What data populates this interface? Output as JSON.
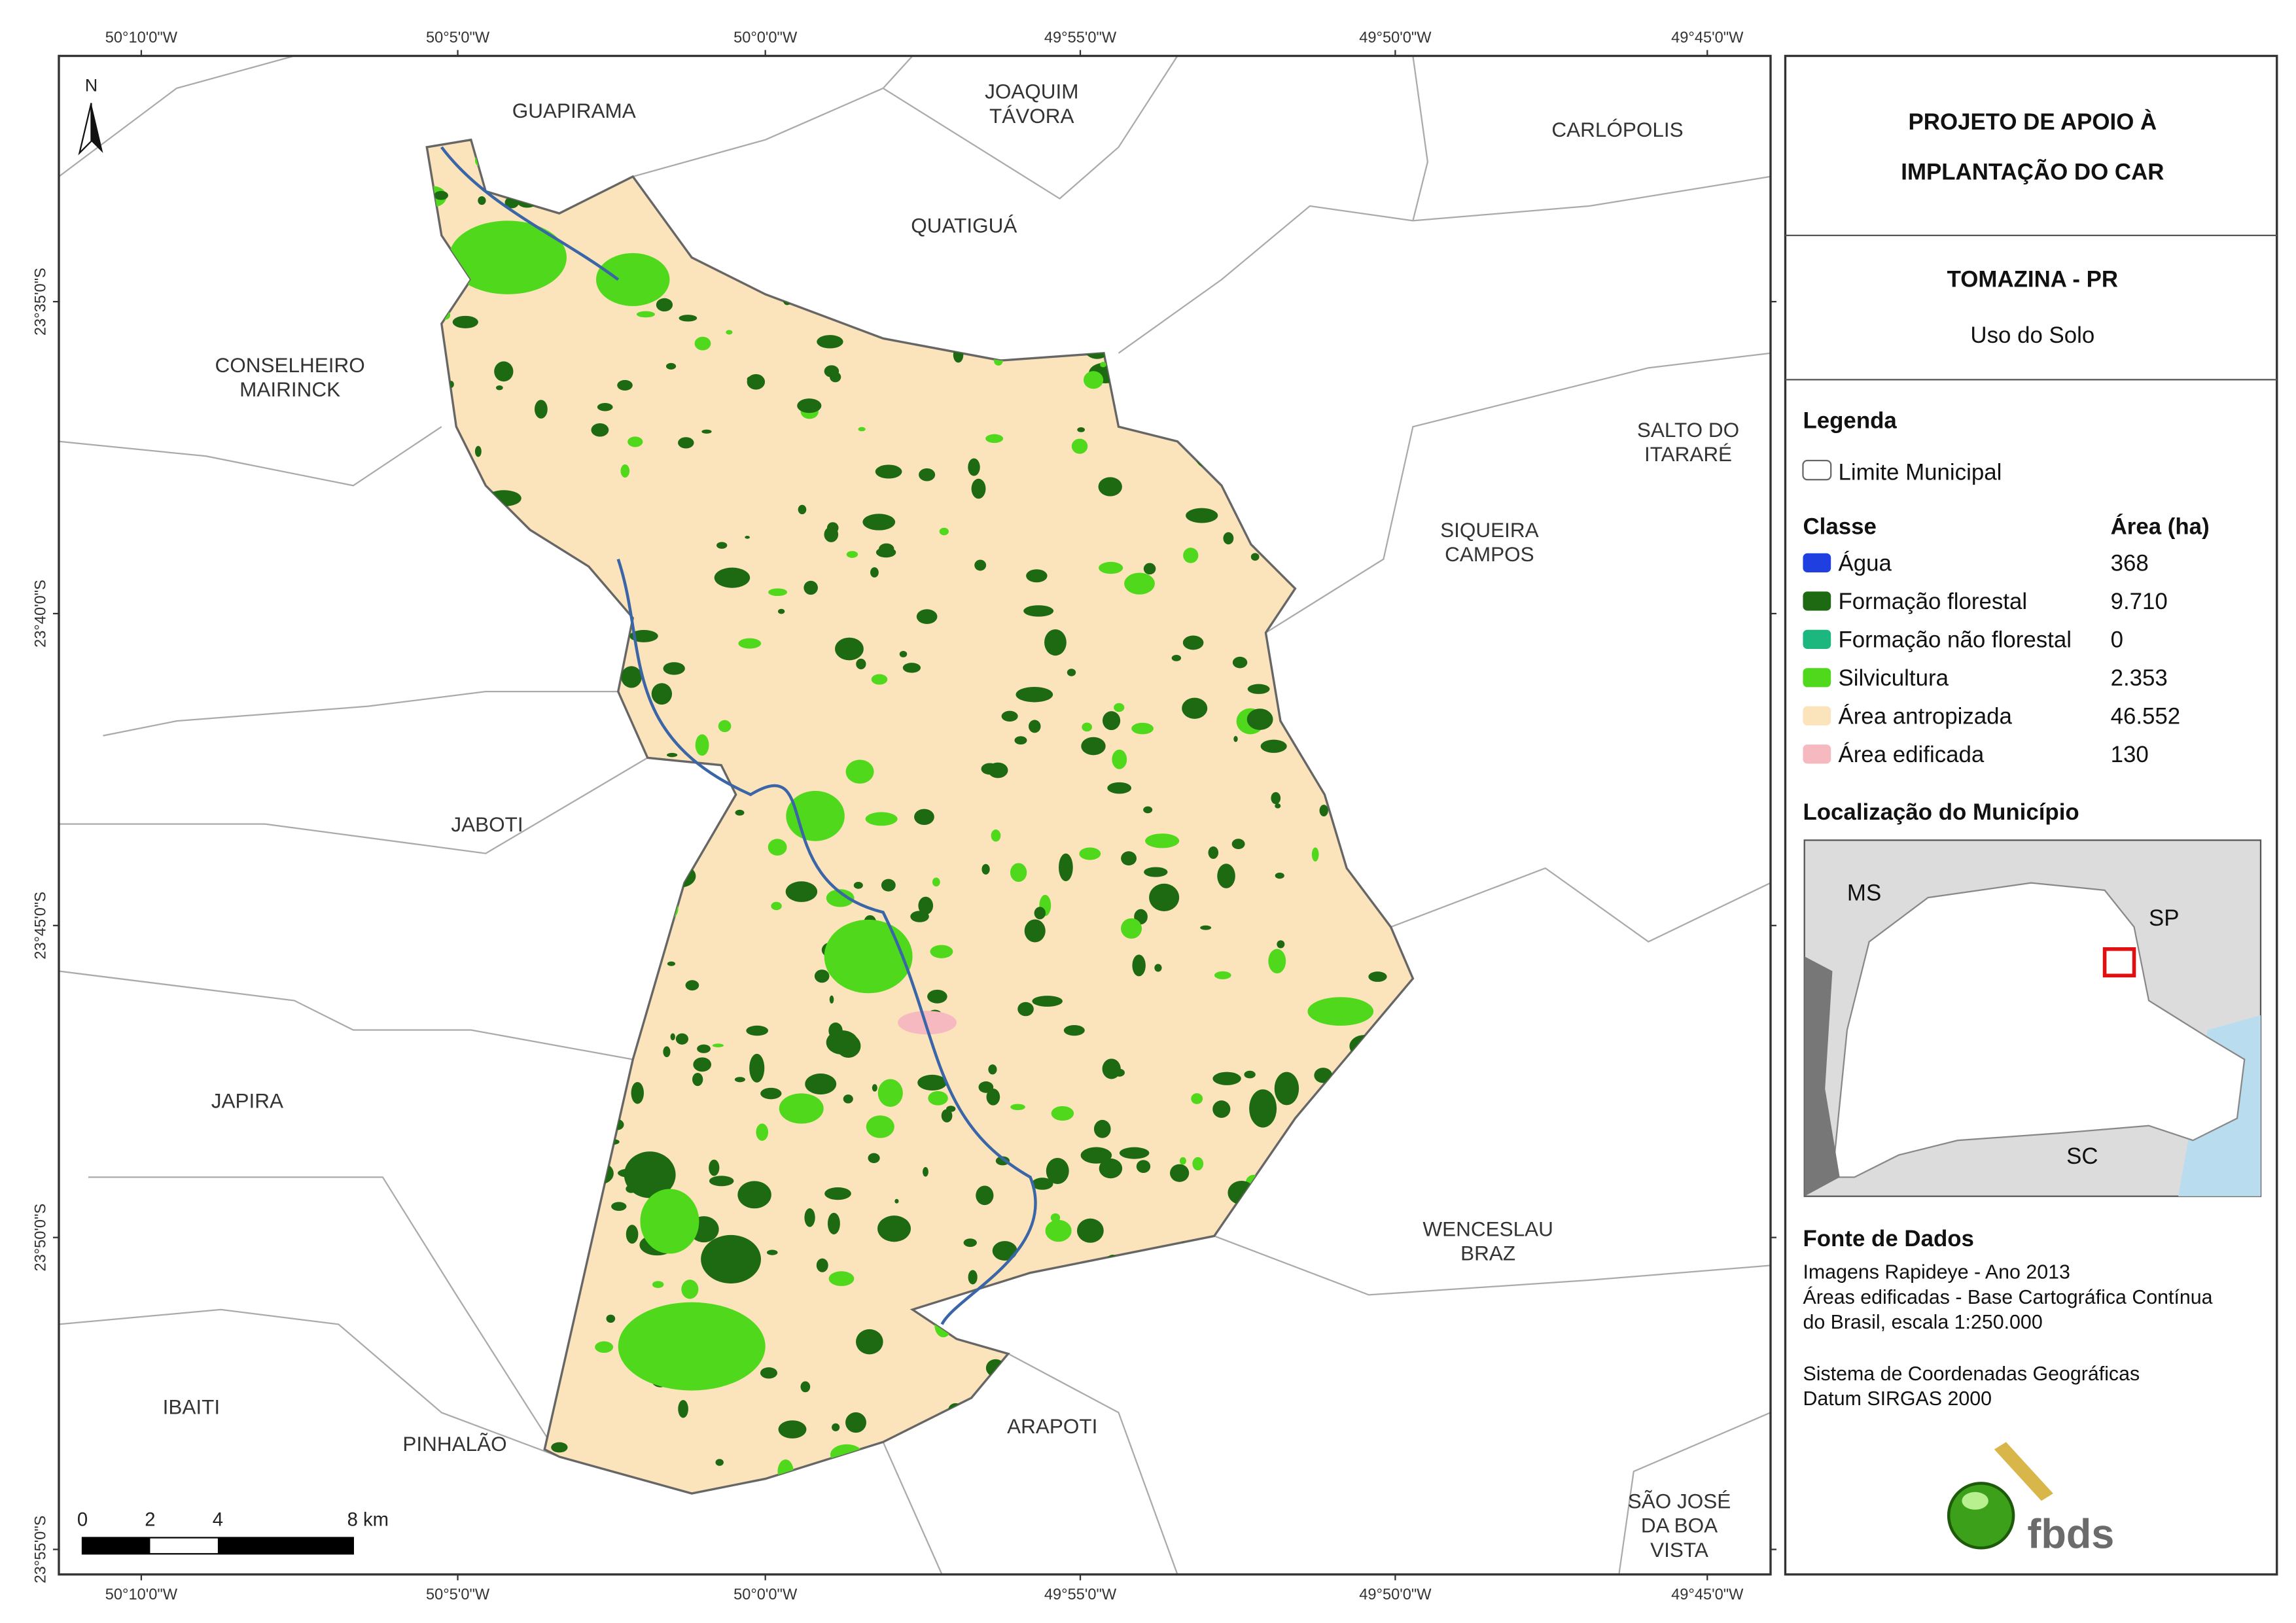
{
  "map": {
    "coordinates": {
      "longitude": [
        "50°10'0\"W",
        "50°5'0\"W",
        "50°0'0\"W",
        "49°55'0\"W",
        "49°50'0\"W",
        "49°45'0\"W"
      ],
      "latitude": [
        "23°35'0\"S",
        "23°40'0\"S",
        "23°45'0\"S",
        "23°50'0\"S",
        "23°55'0\"S"
      ]
    },
    "neighbors": [
      {
        "lines": [
          "GUAPIRAMA"
        ]
      },
      {
        "lines": [
          "JOAQUIM",
          "TÁVORA"
        ]
      },
      {
        "lines": [
          "QUATIGUÁ"
        ]
      },
      {
        "lines": [
          "CARLÓPOLIS"
        ]
      },
      {
        "lines": [
          "CONSELHEIRO",
          "MAIRINCK"
        ]
      },
      {
        "lines": [
          "SALTO DO",
          "ITARARÉ"
        ]
      },
      {
        "lines": [
          "SIQUEIRA",
          "CAMPOS"
        ]
      },
      {
        "lines": [
          "JABOTI"
        ]
      },
      {
        "lines": [
          "JAPIRA"
        ]
      },
      {
        "lines": [
          "WENCESLAU",
          "BRAZ"
        ]
      },
      {
        "lines": [
          "IBAITI"
        ]
      },
      {
        "lines": [
          "PINHALÃO"
        ]
      },
      {
        "lines": [
          "ARAPOTI"
        ]
      },
      {
        "lines": [
          "SÃO JOSÉ",
          "DA BOA",
          "VISTA"
        ]
      }
    ],
    "north": "N",
    "scale_bar": [
      "0",
      "2",
      "4",
      "8 km"
    ]
  },
  "panel": {
    "title": [
      "PROJETO DE APOIO À",
      "IMPLANTAÇÃO DO CAR"
    ],
    "municipality": "TOMAZINA - PR",
    "subtitle": "Uso do Solo",
    "legend": {
      "heading": "Legenda",
      "boundary": "Limite Municipal",
      "class_header": "Classe",
      "area_header": "Área (ha)",
      "rows": [
        {
          "name": "Água",
          "area": "368",
          "color": "#1f3fe0"
        },
        {
          "name": "Formação florestal",
          "area": "9.710",
          "color": "#1d6a12"
        },
        {
          "name": "Formação não florestal",
          "area": "0",
          "color": "#1cb77e"
        },
        {
          "name": "Silvicultura",
          "area": "2.353",
          "color": "#4fd81c"
        },
        {
          "name": "Área antropizada",
          "area": "46.552",
          "color": "#fbe3bb"
        },
        {
          "name": "Área edificada",
          "area": "130",
          "color": "#f7b9c0"
        }
      ]
    },
    "location": {
      "heading": "Localização do Município",
      "labels": [
        "MS",
        "SP",
        "SC"
      ]
    },
    "sources": {
      "heading": "Fonte de Dados",
      "lines": [
        "Imagens Rapideye - Ano 2013",
        "Áreas edificadas - Base Cartográfica Contínua",
        "do Brasil, escala 1:250.000",
        "Sistema de Coordenadas Geográficas",
        "Datum SIRGAS 2000"
      ]
    },
    "logo": "fbds"
  }
}
